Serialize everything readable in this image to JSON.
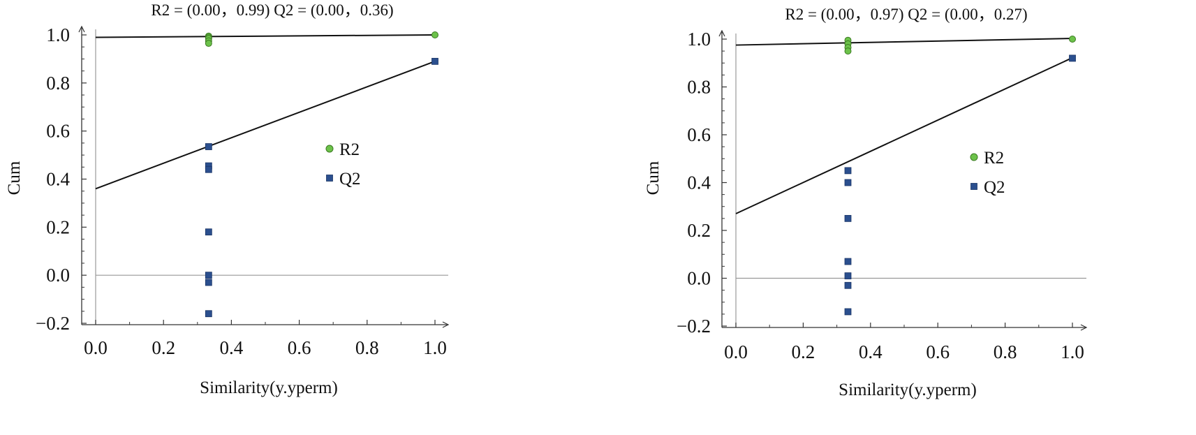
{
  "colors": {
    "r2": "#6cc24a",
    "r2_stroke": "#3b7a22",
    "q2": "#2b4f8e",
    "q2_stroke": "#1b3566",
    "axis": "#333333",
    "zero_line": "#999999",
    "fit_line": "#111111"
  },
  "chart_data": [
    {
      "type": "scatter",
      "title": "R2 = (0.00，0.99)  Q2 = (0.00，0.36)",
      "xlabel": "Similarity(y.yperm)",
      "ylabel": "Cum",
      "xlim": [
        0,
        1
      ],
      "ylim": [
        -0.2,
        1
      ],
      "x_ticks": [
        "0.0",
        "0.2",
        "0.4",
        "0.6",
        "0.8",
        "1.0"
      ],
      "y_ticks": [
        "−0.2",
        "0.0",
        "0.2",
        "0.4",
        "0.6",
        "0.8",
        "1.0"
      ],
      "legend": {
        "position": "right",
        "entries": [
          "R2",
          "Q2"
        ]
      },
      "series": [
        {
          "name": "R2",
          "marker": "circle",
          "points": [
            [
              0.333,
              0.995
            ],
            [
              0.333,
              0.99
            ],
            [
              0.333,
              0.985
            ],
            [
              0.333,
              0.975
            ],
            [
              0.333,
              0.965
            ],
            [
              1.0,
              1.0
            ]
          ]
        },
        {
          "name": "Q2",
          "marker": "square",
          "points": [
            [
              0.333,
              0.535
            ],
            [
              0.333,
              0.455
            ],
            [
              0.333,
              0.44
            ],
            [
              0.333,
              0.18
            ],
            [
              0.333,
              0.0
            ],
            [
              0.333,
              -0.03
            ],
            [
              0.333,
              -0.16
            ],
            [
              1.0,
              0.89
            ]
          ]
        }
      ],
      "regression_lines": [
        {
          "name": "R2",
          "intercept": 0.99,
          "slope": 0.01
        },
        {
          "name": "Q2",
          "intercept": 0.36,
          "slope": 0.53
        }
      ]
    },
    {
      "type": "scatter",
      "title": "R2 = (0.00，0.97)  Q2 = (0.00，0.27)",
      "xlabel": "Similarity(y.yperm)",
      "ylabel": "Cum",
      "xlim": [
        0,
        1
      ],
      "ylim": [
        -0.2,
        1
      ],
      "x_ticks": [
        "0.0",
        "0.2",
        "0.4",
        "0.6",
        "0.8",
        "1.0"
      ],
      "y_ticks": [
        "−0.2",
        "0.0",
        "0.2",
        "0.4",
        "0.6",
        "0.8",
        "1.0"
      ],
      "legend": {
        "position": "right",
        "entries": [
          "R2",
          "Q2"
        ]
      },
      "series": [
        {
          "name": "R2",
          "marker": "circle",
          "points": [
            [
              0.333,
              0.995
            ],
            [
              0.333,
              0.98
            ],
            [
              0.333,
              0.965
            ],
            [
              0.333,
              0.95
            ],
            [
              1.0,
              1.0
            ]
          ]
        },
        {
          "name": "Q2",
          "marker": "square",
          "points": [
            [
              0.333,
              0.45
            ],
            [
              0.333,
              0.4
            ],
            [
              0.333,
              0.25
            ],
            [
              0.333,
              0.07
            ],
            [
              0.333,
              0.01
            ],
            [
              0.333,
              -0.03
            ],
            [
              0.333,
              -0.14
            ],
            [
              1.0,
              0.92
            ]
          ]
        }
      ],
      "regression_lines": [
        {
          "name": "R2",
          "intercept": 0.975,
          "slope": 0.028
        },
        {
          "name": "Q2",
          "intercept": 0.27,
          "slope": 0.652
        }
      ]
    }
  ]
}
